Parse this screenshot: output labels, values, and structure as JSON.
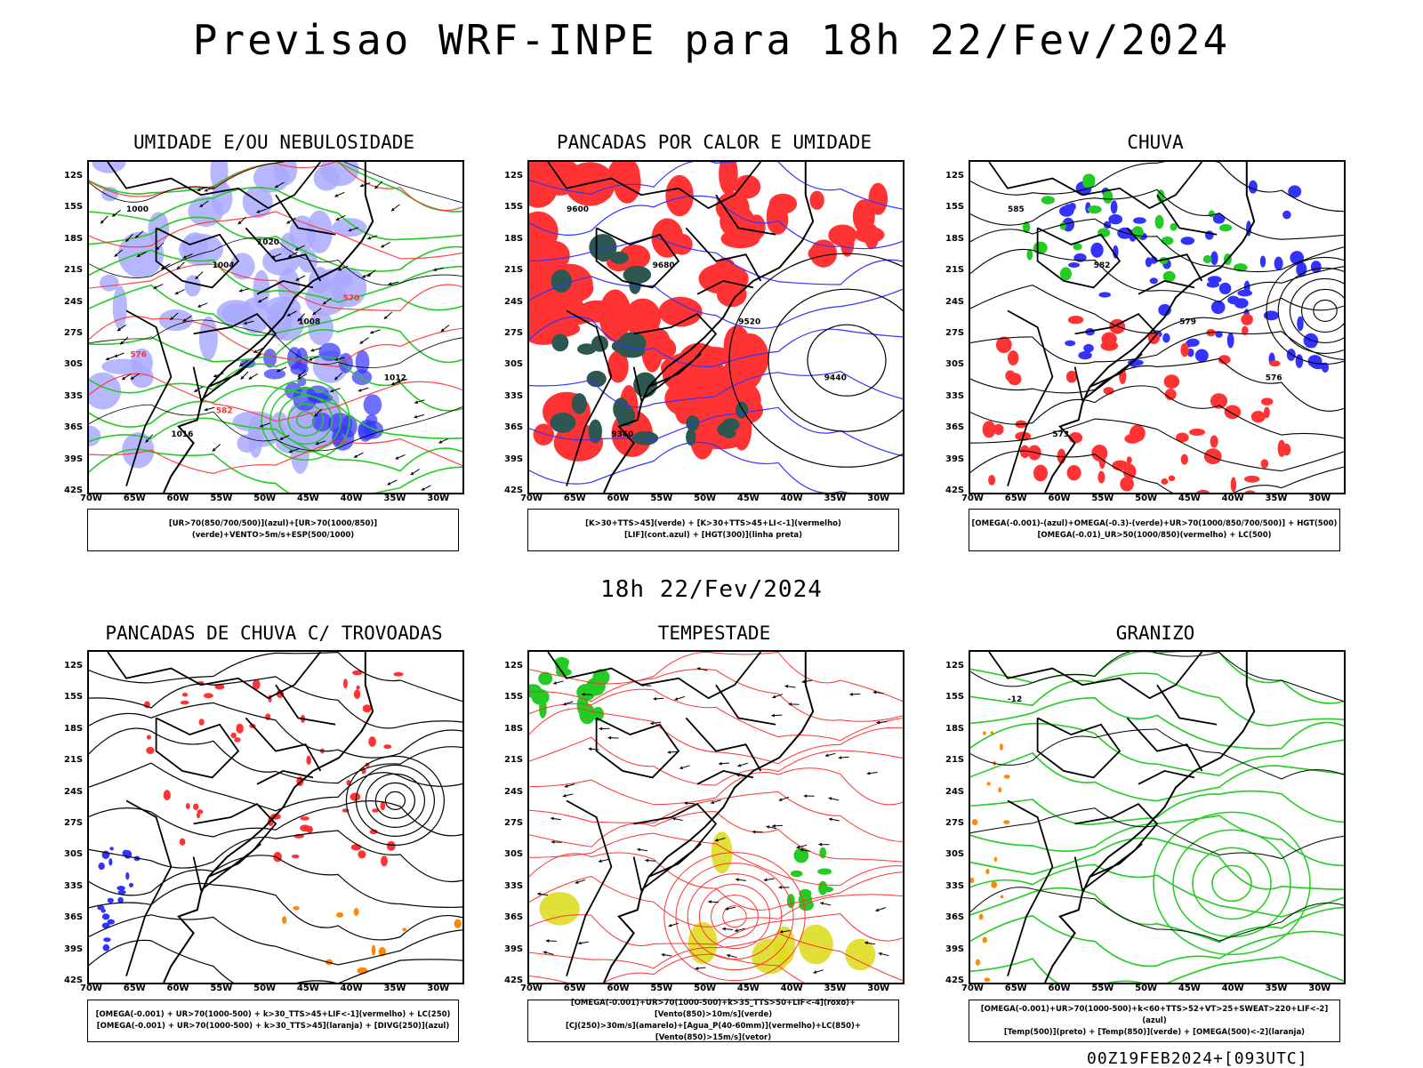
{
  "title": "Previsao WRF-INPE  para 18h 22/Fev/2024",
  "subtitle": "18h 22/Fev/2024",
  "footer": "00Z19FEB2024+[093UTC]",
  "lat_labels": [
    "12S",
    "15S",
    "18S",
    "21S",
    "24S",
    "27S",
    "30S",
    "33S",
    "36S",
    "39S",
    "42S"
  ],
  "lon_labels": [
    "70W",
    "65W",
    "60W",
    "55W",
    "50W",
    "45W",
    "40W",
    "35W",
    "30W"
  ],
  "colors": {
    "blue": "#3333ff",
    "lightblue": "#aaaaff",
    "green": "#22cc22",
    "red": "#ff3333",
    "darkteal": "#2e5752",
    "orange": "#ff8800",
    "yellow": "#dddd22",
    "black": "#000000"
  },
  "panels": [
    {
      "title": "UMIDADE E/OU NEBULOSIDADE",
      "legend": [
        "[UR>70(850/700/500)](azul)+[UR>70(1000/850)](verde)+VENTO>5m/s+ESP(500/1000)"
      ],
      "labels": [
        "1000",
        "1004",
        "1008",
        "1012",
        "1016",
        "1020",
        "570",
        "576",
        "582"
      ]
    },
    {
      "title": "PANCADAS POR CALOR E UMIDADE",
      "legend": [
        "[K>30+TTS>45](verde) + [K>30+TTS>45+LI<-1](vermelho)",
        "[LIF](cont.azul) + [HGT(300)](linha preta)"
      ],
      "labels": [
        "9600",
        "9680",
        "9520",
        "9440",
        "9360"
      ]
    },
    {
      "title": "CHUVA",
      "legend": [
        "[OMEGA(-0.001)-(azul)+OMEGA(-0.3)-(verde)+UR>70(1000/850/700/500)] + HGT(500)",
        "[OMEGA(-0.01)_UR>50(1000/850)(vermelho) + LC(500)"
      ],
      "labels": [
        "585",
        "582",
        "579",
        "576",
        "573"
      ]
    },
    {
      "title": "PANCADAS DE CHUVA C/ TROVOADAS",
      "legend": [
        "[OMEGA(-0.001) + UR>70(1000-500) + k>30_TTS>45+LIF<-1](vermelho) + LC(250)",
        "[OMEGA(-0.001) + UR>70(1000-500) + k>30_TTS>45](laranja) + [DIVG(250)](azul)"
      ],
      "labels": []
    },
    {
      "title": "TEMPESTADE",
      "legend": [
        "[OMEGA(-0.001)+UR>70(1000-500)+k>35_TTS>50+LIF<-4](roxo)+[Vento(850)>10m/s](verde)",
        "[CJ(250)>30m/s](amarelo)+[Agua_P(40-60mm)](vermelho)+LC(850)+[Vento(850)>15m/s](vetor)"
      ],
      "labels": []
    },
    {
      "title": "GRANIZO",
      "legend": [
        "[OMEGA(-0.001)+UR>70(1000-500)+k<60+TTS>52+VT>25+SWEAT>220+LIF<-2](azul)",
        "[Temp(500)](preto) + [Temp(850)](verde) + [OMEGA(500)<-2](laranja)"
      ],
      "labels": [
        "-12"
      ]
    }
  ]
}
